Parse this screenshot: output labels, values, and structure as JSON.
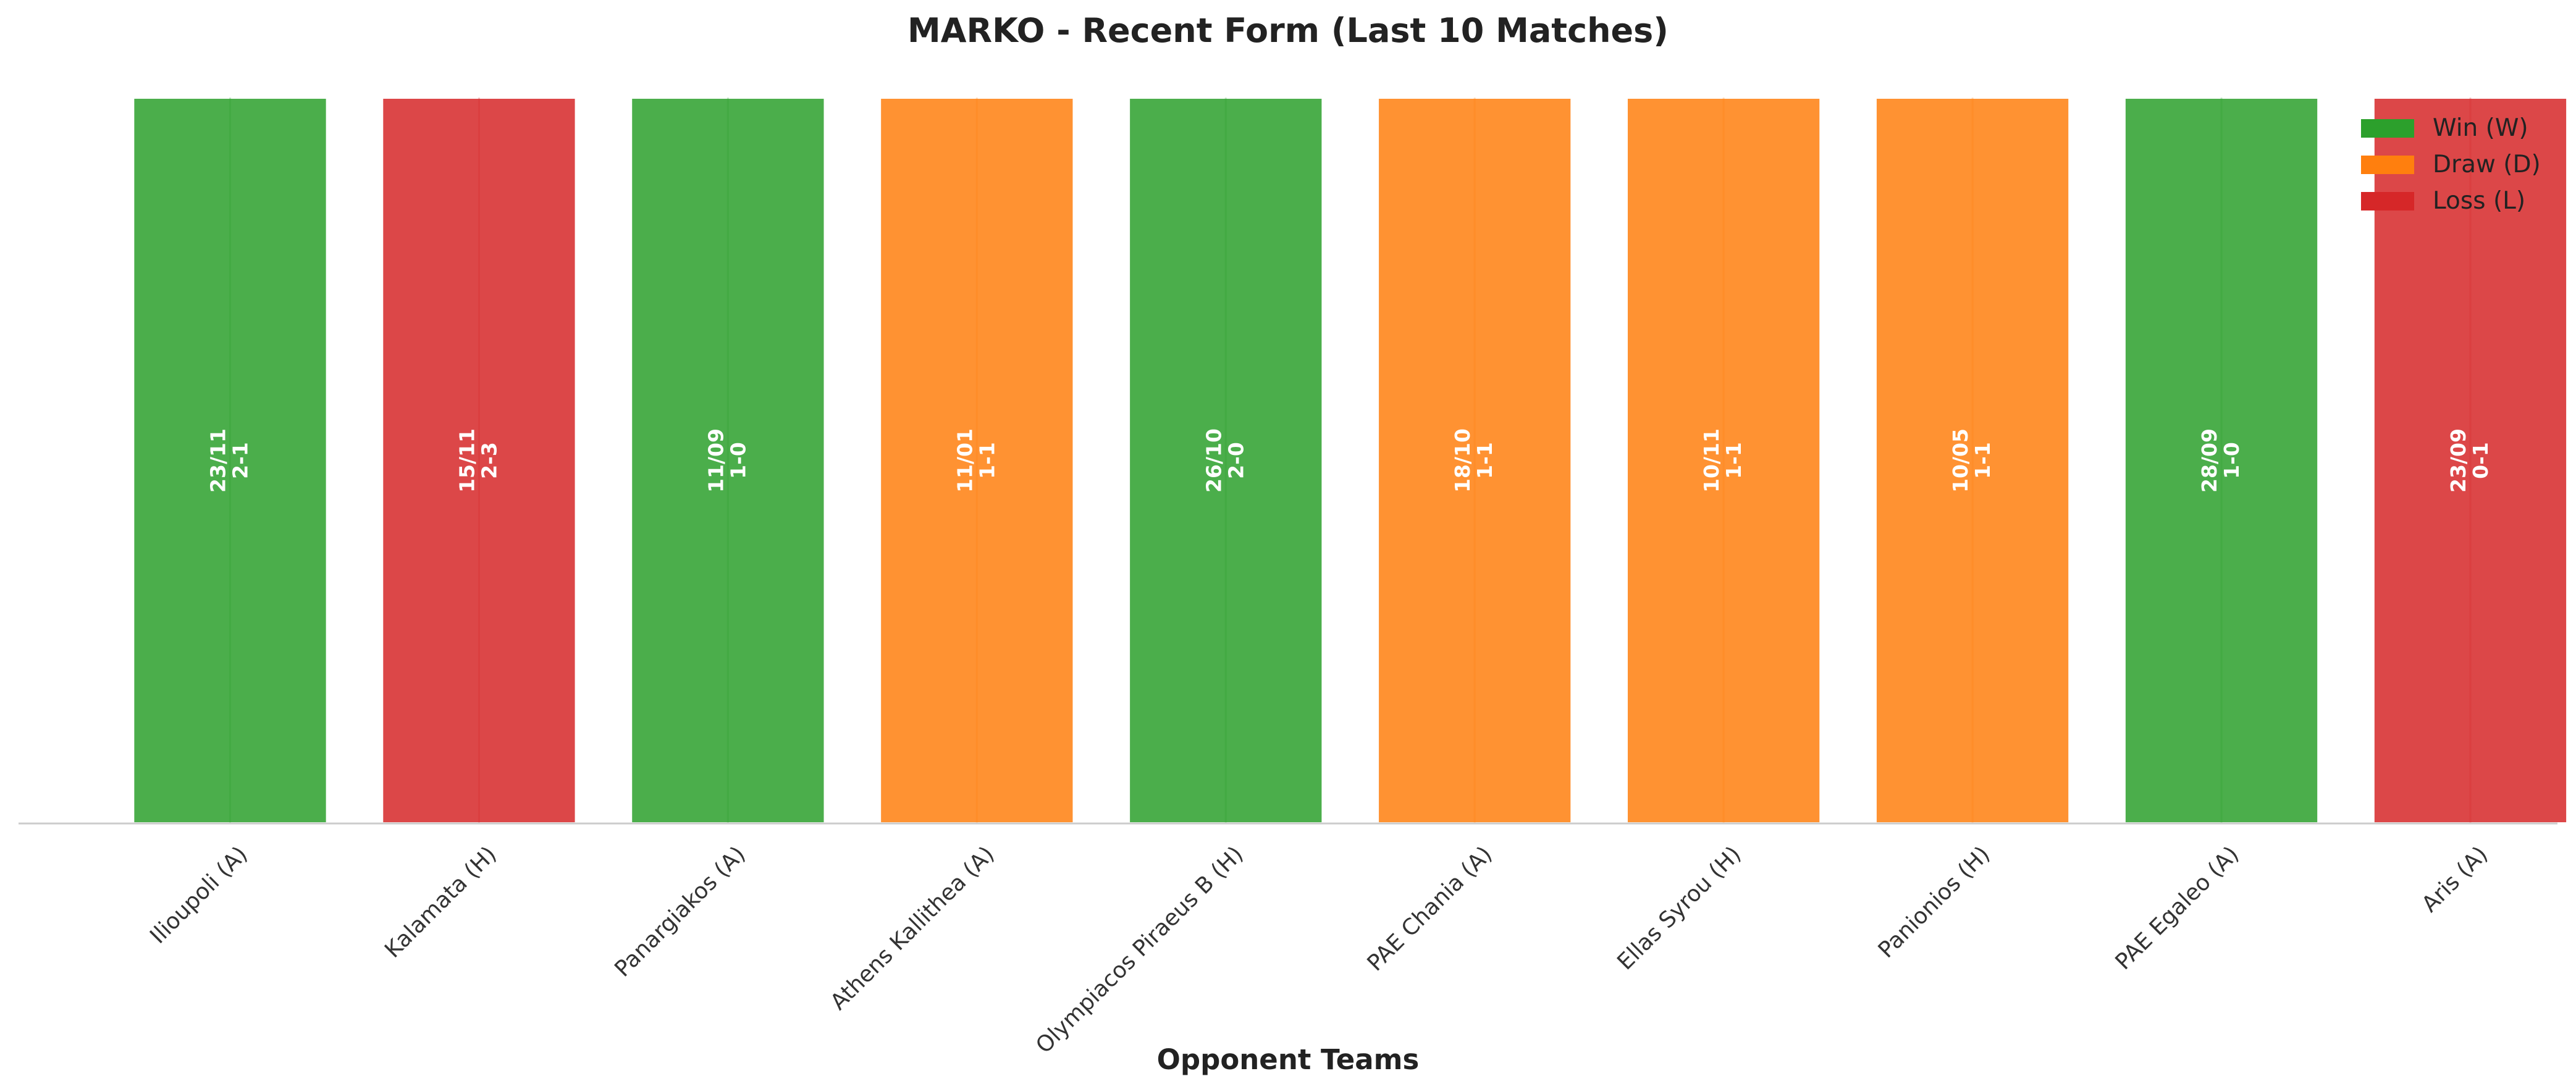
{
  "chart_data": {
    "type": "bar",
    "title": "MARKO - Recent Form (Last 10 Matches)",
    "xlabel": "Opponent Teams",
    "ylabel": "",
    "ylim": [
      0,
      1
    ],
    "grid": false,
    "legend_position": "top-right",
    "categories": [
      "Ilioupoli (A)",
      "Kalamata (H)",
      "Panargiakos (A)",
      "Athens Kallithea (A)",
      "Olympiacos Piraeus B (H)",
      "PAE Chania (A)",
      "Ellas Syrou (H)",
      "Panionios (H)",
      "PAE Egaleo (A)",
      "Aris (A)"
    ],
    "values": [
      1,
      1,
      1,
      1,
      1,
      1,
      1,
      1,
      1,
      1
    ],
    "results": [
      "W",
      "L",
      "W",
      "D",
      "W",
      "D",
      "D",
      "D",
      "W",
      "L"
    ],
    "dates": [
      "23/11",
      "15/11",
      "11/09",
      "11/01",
      "26/10",
      "18/10",
      "10/11",
      "10/05",
      "28/09",
      "23/09"
    ],
    "scores": [
      "2-1",
      "2-3",
      "1-0",
      "1-1",
      "2-0",
      "1-1",
      "1-1",
      "1-1",
      "1-0",
      "0-1"
    ],
    "legend": [
      {
        "key": "W",
        "label": "Win (W)",
        "color": "#2ca02c"
      },
      {
        "key": "D",
        "label": "Draw (D)",
        "color": "#ff7f0e"
      },
      {
        "key": "L",
        "label": "Loss (L)",
        "color": "#d62728"
      }
    ]
  }
}
